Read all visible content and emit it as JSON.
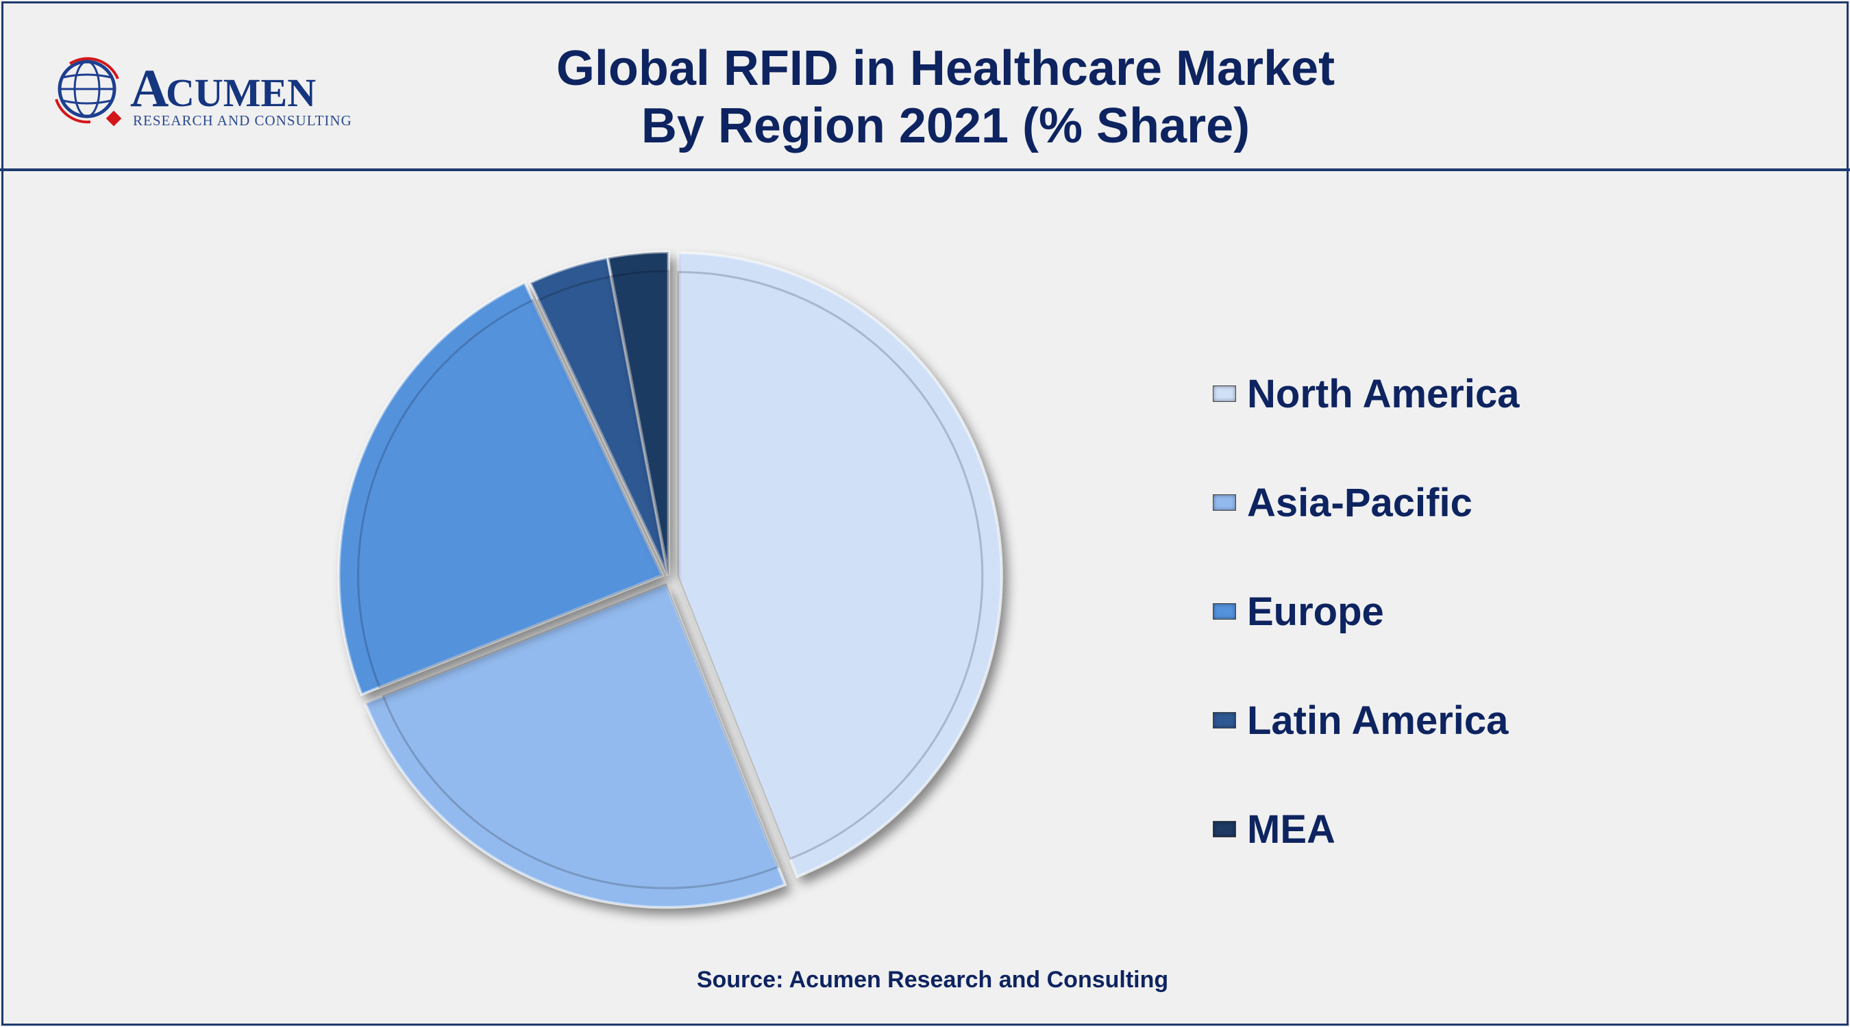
{
  "header": {
    "title_line1": "Global RFID in Healthcare Market",
    "title_line2": "By Region 2021 (% Share)"
  },
  "logo": {
    "name": "ACUMEN",
    "tagline": "RESEARCH AND CONSULTING"
  },
  "source": "Source: Acumen Research and Consulting",
  "colors": {
    "text": "#0d2461",
    "border": "#1f3a6e"
  },
  "chart_data": {
    "type": "pie",
    "title": "Global RFID in Healthcare Market By Region 2021 (% Share)",
    "categories": [
      "North America",
      "Asia-Pacific",
      "Europe",
      "Latin America",
      "MEA"
    ],
    "values": [
      44,
      25,
      24,
      4,
      3
    ],
    "colors": [
      "#cfe0f7",
      "#93baee",
      "#5592dc",
      "#2f5892",
      "#1f3a63"
    ],
    "start_angle": "12 o'clock, clockwise",
    "legend_position": "right"
  }
}
